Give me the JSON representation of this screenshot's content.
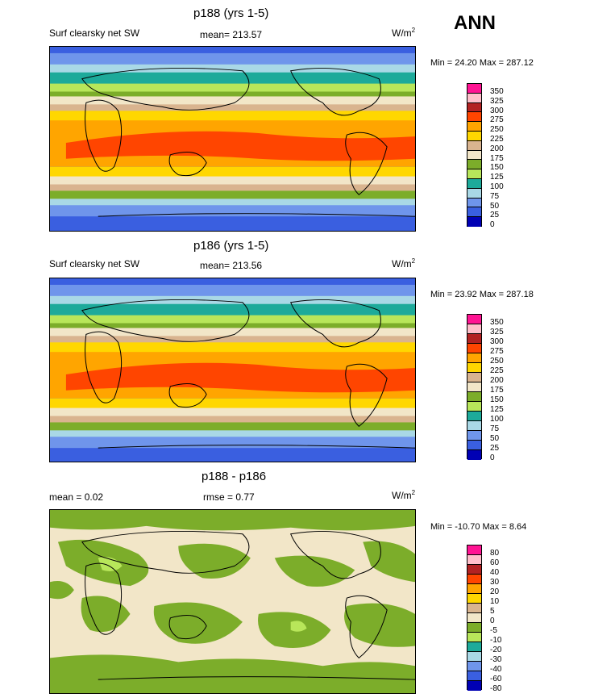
{
  "season": "ANN",
  "colors": {
    "abs": [
      "#8c6fd6",
      "#0000b4",
      "#3a5fe0",
      "#6f95eb",
      "#a9d8e6",
      "#1daa9a",
      "#b8e65a",
      "#7cad2a",
      "#f2e6c8",
      "#d9b48f",
      "#ffd700",
      "#ffa500",
      "#ff4500",
      "#b22222",
      "#ffc0cb",
      "#ff1493"
    ],
    "diff": [
      "#8c6fd6",
      "#0000b4",
      "#3a5fe0",
      "#6f95eb",
      "#a9d8e6",
      "#1daa9a",
      "#b8e65a",
      "#7cad2a",
      "#f2e6c8",
      "#d9b48f",
      "#ffd700",
      "#ffa500",
      "#ff4500",
      "#b22222",
      "#ffc0cb",
      "#ff1493"
    ]
  },
  "panels": [
    {
      "title": "p188 (yrs 1-5)",
      "left_label": "Surf clearsky net SW",
      "stat": "mean= 213.57",
      "units": "W/m",
      "units_sup": "2",
      "minmax": "Min =  24.20 Max = 287.12",
      "ticks": [
        "350",
        "325",
        "300",
        "275",
        "250",
        "225",
        "200",
        "175",
        "150",
        "125",
        "100",
        "75",
        "50",
        "25",
        "0"
      ],
      "scale": "abs"
    },
    {
      "title": "p186 (yrs 1-5)",
      "left_label": "Surf clearsky net SW",
      "stat": "mean= 213.56",
      "units": "W/m",
      "units_sup": "2",
      "minmax": "Min =  23.92 Max = 287.18",
      "ticks": [
        "350",
        "325",
        "300",
        "275",
        "250",
        "225",
        "200",
        "175",
        "150",
        "125",
        "100",
        "75",
        "50",
        "25",
        "0"
      ],
      "scale": "abs"
    },
    {
      "title": "p188 - p186",
      "left_label": "mean =   0.02",
      "stat": "rmse =   0.77",
      "units": "W/m",
      "units_sup": "2",
      "minmax": "Min = -10.70 Max =   8.64",
      "ticks": [
        "80",
        "60",
        "40",
        "30",
        "20",
        "10",
        "5",
        "0",
        "-5",
        "-10",
        "-20",
        "-30",
        "-40",
        "-60",
        "-80"
      ],
      "scale": "diff"
    }
  ]
}
